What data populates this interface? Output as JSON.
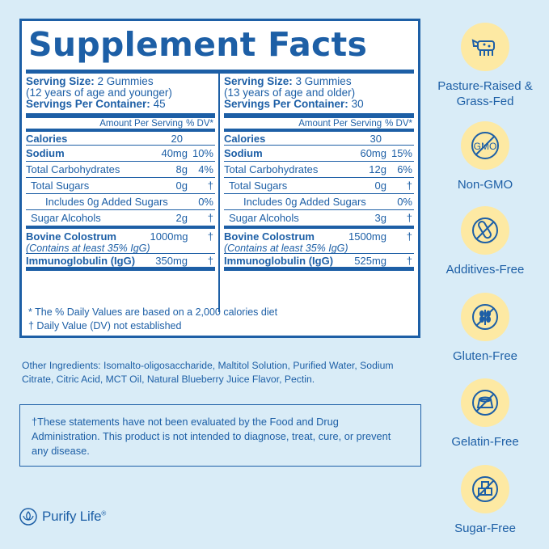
{
  "title": "Supplement Facts",
  "left": {
    "serving_size_label": "Serving Size:",
    "serving_size_value": "2 Gummies",
    "serving_note": "(12 years of age and younger)",
    "servings_label": "Servings Per Container:",
    "servings_value": "45",
    "amount_header": "Amount Per Serving",
    "dv_header": "% DV*",
    "rows": [
      {
        "label": "Calories",
        "amount": "20",
        "dv": ""
      },
      {
        "label": "Sodium",
        "amount": "40mg",
        "dv": "10%"
      },
      {
        "label": "Total Carbohydrates",
        "amount": "8g",
        "dv": "4%"
      },
      {
        "label": "Total Sugars",
        "amount": "0g",
        "dv": "†"
      },
      {
        "label": "Includes 0g Added Sugars",
        "amount": "",
        "dv": "0%"
      },
      {
        "label": "Sugar Alcohols",
        "amount": "2g",
        "dv": "†"
      },
      {
        "label": "Bovine Colostrum",
        "sub": "(Contains at least 35% IgG)",
        "amount": "1000mg",
        "dv": "†"
      },
      {
        "label": "Immunoglobulin (IgG)",
        "amount": "350mg",
        "dv": "†"
      }
    ]
  },
  "right": {
    "serving_size_label": "Serving Size:",
    "serving_size_value": "3 Gummies",
    "serving_note": "(13 years of age and older)",
    "servings_label": "Servings Per Container:",
    "servings_value": "30",
    "amount_header": "Amount Per Serving",
    "dv_header": "% DV*",
    "rows": [
      {
        "label": "Calories",
        "amount": "30",
        "dv": ""
      },
      {
        "label": "Sodium",
        "amount": "60mg",
        "dv": "15%"
      },
      {
        "label": "Total Carbohydrates",
        "amount": "12g",
        "dv": "6%"
      },
      {
        "label": "Total Sugars",
        "amount": "0g",
        "dv": "†"
      },
      {
        "label": "Includes 0g Added Sugars",
        "amount": "",
        "dv": "0%"
      },
      {
        "label": "Sugar Alcohols",
        "amount": "3g",
        "dv": "†"
      },
      {
        "label": "Bovine Colostrum",
        "sub": "(Contains at least 35% IgG)",
        "amount": "1500mg",
        "dv": "†"
      },
      {
        "label": "Immunoglobulin (IgG)",
        "amount": "525mg",
        "dv": "†"
      }
    ]
  },
  "footnote_1": "* The % Daily Values are based on a 2,000 calories diet",
  "footnote_2": "† Daily Value (DV) not established",
  "other_ingredients": "Other Ingredients: Isomalto-oligosaccharide, Maltitol Solution, Purified Water, Sodium Citrate, Citric Acid, MCT Oil, Natural Blueberry Juice Flavor, Pectin.",
  "disclaimer": "†These statements have not been evaluated by the Food and Drug Administration. This product is not intended to diagnose, treat, cure, or prevent any disease.",
  "brand": {
    "name": "Purify Life",
    "mark": "®"
  },
  "badges": [
    {
      "icon": "cow-icon",
      "label": "Pasture-Raised & Grass-Fed"
    },
    {
      "icon": "no-gmo-icon",
      "icon_text": "GMO",
      "label": "Non-GMO"
    },
    {
      "icon": "test-tube-icon",
      "label": "Additives-Free"
    },
    {
      "icon": "wheat-icon",
      "label": "Gluten-Free"
    },
    {
      "icon": "gelatin-icon",
      "label": "Gelatin-Free"
    },
    {
      "icon": "sugar-cubes-icon",
      "label": "Sugar-Free"
    }
  ],
  "colors": {
    "background": "#d9ecf7",
    "primary": "#1d5fa6",
    "badge": "#fde9a3"
  }
}
